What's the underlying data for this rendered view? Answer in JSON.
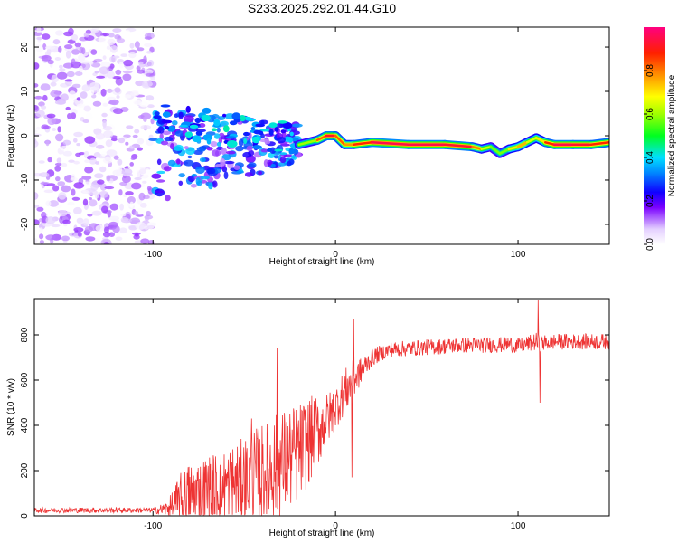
{
  "title": "S233.2025.292.01.44.G10",
  "chart_data": [
    {
      "type": "heatmap",
      "xlabel": "Height of straight line (km)",
      "ylabel": "Frequency (Hz)",
      "xlim": [
        -165,
        150
      ],
      "ylim": [
        -24.5,
        24.5
      ],
      "xticks": [
        -100,
        0,
        100
      ],
      "xtick_labels": [
        "-100",
        "0",
        "100"
      ],
      "yticks": [
        -20,
        -10,
        0,
        10,
        20
      ],
      "ytick_labels": [
        "-20",
        "-10",
        "0",
        "10",
        "20"
      ],
      "colorbar": {
        "label": "Normalized spectral amplitude",
        "range": [
          0,
          1
        ],
        "ticks": [
          0.0,
          0.2,
          0.4,
          0.6,
          0.8
        ],
        "tick_labels": [
          "0.0",
          "0.2",
          "0.4",
          "0.6",
          "0.8"
        ]
      },
      "regions": [
        {
          "x": [
            -165,
            -100
          ],
          "freq_range": [
            -24.5,
            24.5
          ],
          "amplitude": [
            0.0,
            0.15
          ],
          "description_level": "noise"
        },
        {
          "x": [
            -100,
            -20
          ],
          "freq_range": [
            -15,
            6
          ],
          "amplitude": [
            0.1,
            0.4
          ]
        },
        {
          "x": [
            -20,
            150
          ],
          "freq_range": [
            -3,
            1
          ],
          "amplitude": [
            0.4,
            1.0
          ]
        }
      ],
      "ridge": {
        "x": [
          -20,
          -10,
          -5,
          0,
          5,
          10,
          20,
          40,
          60,
          75,
          80,
          85,
          90,
          95,
          100,
          105,
          110,
          115,
          120,
          130,
          140,
          150
        ],
        "freq": [
          -2,
          -1,
          0,
          0,
          -2,
          -2,
          -1.5,
          -2,
          -2,
          -2.5,
          -3,
          -2.5,
          -4,
          -3,
          -2.5,
          -1.5,
          -0.5,
          -1.5,
          -2,
          -2,
          -2,
          -1.5
        ],
        "amplitude": [
          0.5,
          0.7,
          0.95,
          0.9,
          0.75,
          0.8,
          0.95,
          0.95,
          0.95,
          0.9,
          0.7,
          0.6,
          0.55,
          0.6,
          0.8,
          0.7,
          0.6,
          0.8,
          0.95,
          0.95,
          0.9,
          0.85
        ]
      }
    },
    {
      "type": "line",
      "xlabel": "Height of straight line (km)",
      "ylabel": "SNR (10 * v/v)",
      "xlim": [
        -165,
        150
      ],
      "ylim": [
        0,
        960
      ],
      "xticks": [
        -100,
        0,
        100
      ],
      "xtick_labels": [
        "-100",
        "0",
        "100"
      ],
      "yticks": [
        0,
        200,
        400,
        600,
        800
      ],
      "ytick_labels": [
        "0",
        "200",
        "400",
        "600",
        "800"
      ],
      "color": "#ee3333",
      "series": [
        {
          "name": "SNR",
          "x": [
            -165,
            -140,
            -120,
            -100,
            -92,
            -85,
            -80,
            -70,
            -60,
            -50,
            -40,
            -30,
            -20,
            -15,
            -10,
            -5,
            0,
            5,
            8,
            10,
            12,
            15,
            20,
            25,
            30,
            40,
            50,
            60,
            70,
            80,
            90,
            95,
            100,
            105,
            110,
            112,
            115,
            120,
            130,
            140,
            150
          ],
          "base": [
            25,
            25,
            25,
            25,
            30,
            60,
            90,
            110,
            130,
            160,
            190,
            230,
            280,
            330,
            370,
            420,
            480,
            550,
            580,
            600,
            620,
            650,
            700,
            720,
            735,
            740,
            745,
            750,
            755,
            755,
            755,
            760,
            750,
            760,
            770,
            760,
            765,
            770,
            770,
            770,
            770
          ],
          "spread": [
            12,
            12,
            12,
            12,
            35,
            130,
            150,
            160,
            170,
            190,
            220,
            240,
            220,
            200,
            160,
            120,
            100,
            100,
            100,
            90,
            70,
            55,
            40,
            35,
            35,
            35,
            35,
            35,
            35,
            35,
            35,
            35,
            35,
            35,
            40,
            40,
            35,
            35,
            35,
            35,
            35
          ]
        }
      ],
      "spikes": [
        {
          "x": 111,
          "y": 955
        },
        {
          "x": 112,
          "y": 500
        },
        {
          "x": 10,
          "y": 870
        },
        {
          "x": 9,
          "y": 170
        },
        {
          "x": -32,
          "y": 740
        },
        {
          "x": -46,
          "y": 430
        }
      ]
    }
  ]
}
